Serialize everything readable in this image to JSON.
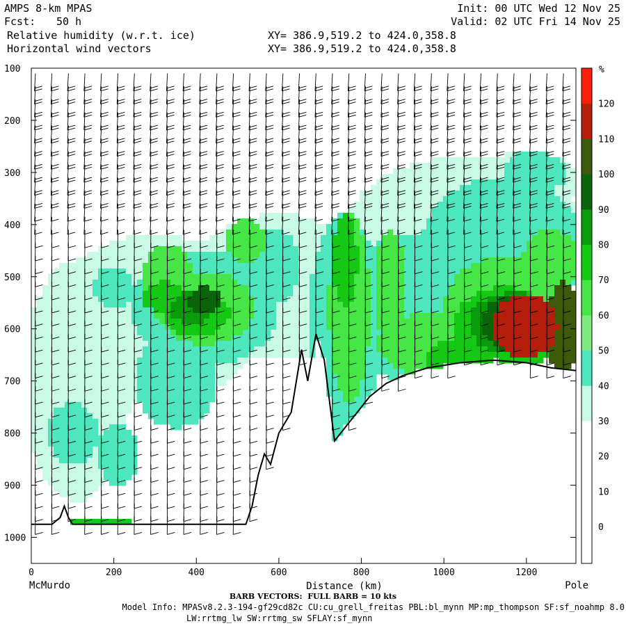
{
  "header": {
    "model": "AMPS 8-km MPAS",
    "fcst_label": "Fcst:",
    "fcst_value": "50 h",
    "field": "Relative humidity (w.r.t. ice)",
    "vector_field": "Horizontal wind vectors",
    "xy_line1": "XY= 386.9,519.2 to 424.0,358.8",
    "xy_line2": "XY= 386.9,519.2 to 424.0,358.8",
    "init": "Init: 00 UTC Wed 12 Nov 25",
    "valid": "Valid: 02 UTC Fri 14 Nov 25"
  },
  "footer": {
    "barb_note": "BARB VECTORS:  FULL BARB = 10 kts",
    "model_info_1": "Model Info: MPASv8.2.3-194-gf29cd82c CU:cu_grell_freitas PBL:bl_mynn MP:mp_thompson SF:sf_noahmp 8.0",
    "model_info_2": "LW:rrtmg_lw SW:rrtmg_sw SFLAY:sf_mynn"
  },
  "chart_data": {
    "type": "heatmap",
    "title": "Relative humidity (w.r.t. ice)",
    "xlabel": "Distance (km)",
    "xlim": [
      0,
      1320
    ],
    "ylim": [
      1050,
      100
    ],
    "x_ticks": [
      0,
      200,
      400,
      600,
      800,
      1000,
      1200
    ],
    "y_ticks": [
      100,
      200,
      300,
      400,
      500,
      600,
      700,
      800,
      900,
      1000
    ],
    "x_end_labels": [
      "McMurdo",
      "Pole"
    ],
    "colorbar": {
      "unit": "%",
      "levels": [
        0,
        10,
        20,
        30,
        40,
        50,
        60,
        70,
        80,
        90,
        100,
        110,
        120
      ],
      "colors": [
        "#ffffff",
        "#ffffff",
        "#ffffff",
        "#c8fae6",
        "#4ee6be",
        "#7deb7d",
        "#46e646",
        "#14c814",
        "#0a9b0a",
        "#0a640a",
        "#3c5a0a",
        "#b41e0a",
        "#ff1e0a"
      ]
    },
    "rh_blobs": [
      {
        "x": 300,
        "p": 580,
        "rx": 260,
        "ry": 160,
        "rh": 35
      },
      {
        "x": 110,
        "p": 700,
        "rx": 130,
        "ry": 230,
        "rh": 35
      },
      {
        "x": 600,
        "p": 520,
        "rx": 220,
        "ry": 140,
        "rh": 35
      },
      {
        "x": 1050,
        "p": 430,
        "rx": 300,
        "ry": 160,
        "rh": 35
      },
      {
        "x": 1200,
        "p": 320,
        "rx": 130,
        "ry": 60,
        "rh": 35
      },
      {
        "x": 420,
        "p": 560,
        "rx": 180,
        "ry": 110,
        "rh": 45
      },
      {
        "x": 350,
        "p": 700,
        "rx": 100,
        "ry": 90,
        "rh": 45
      },
      {
        "x": 100,
        "p": 800,
        "rx": 60,
        "ry": 60,
        "rh": 45
      },
      {
        "x": 210,
        "p": 840,
        "rx": 50,
        "ry": 60,
        "rh": 45
      },
      {
        "x": 200,
        "p": 520,
        "rx": 50,
        "ry": 40,
        "rh": 45
      },
      {
        "x": 590,
        "p": 480,
        "rx": 60,
        "ry": 70,
        "rh": 45
      },
      {
        "x": 760,
        "p": 600,
        "rx": 90,
        "ry": 220,
        "rh": 45
      },
      {
        "x": 930,
        "p": 560,
        "rx": 200,
        "ry": 140,
        "rh": 45
      },
      {
        "x": 1140,
        "p": 450,
        "rx": 200,
        "ry": 140,
        "rh": 45
      },
      {
        "x": 1220,
        "p": 300,
        "rx": 80,
        "ry": 40,
        "rh": 45
      },
      {
        "x": 420,
        "p": 560,
        "rx": 120,
        "ry": 70,
        "rh": 60
      },
      {
        "x": 330,
        "p": 500,
        "rx": 60,
        "ry": 60,
        "rh": 60
      },
      {
        "x": 520,
        "p": 430,
        "rx": 50,
        "ry": 40,
        "rh": 60
      },
      {
        "x": 770,
        "p": 560,
        "rx": 50,
        "ry": 180,
        "rh": 60
      },
      {
        "x": 870,
        "p": 520,
        "rx": 40,
        "ry": 110,
        "rh": 60
      },
      {
        "x": 960,
        "p": 630,
        "rx": 120,
        "ry": 60,
        "rh": 60
      },
      {
        "x": 1150,
        "p": 560,
        "rx": 150,
        "ry": 100,
        "rh": 60
      },
      {
        "x": 1260,
        "p": 470,
        "rx": 70,
        "ry": 60,
        "rh": 60
      },
      {
        "x": 400,
        "p": 570,
        "rx": 80,
        "ry": 45,
        "rh": 70
      },
      {
        "x": 320,
        "p": 540,
        "rx": 50,
        "ry": 30,
        "rh": 70
      },
      {
        "x": 760,
        "p": 470,
        "rx": 30,
        "ry": 90,
        "rh": 70
      },
      {
        "x": 1150,
        "p": 600,
        "rx": 130,
        "ry": 80,
        "rh": 70
      },
      {
        "x": 1020,
        "p": 660,
        "rx": 60,
        "ry": 40,
        "rh": 70
      },
      {
        "x": 390,
        "p": 560,
        "rx": 55,
        "ry": 30,
        "rh": 80
      },
      {
        "x": 1170,
        "p": 590,
        "rx": 110,
        "ry": 60,
        "rh": 80
      },
      {
        "x": 420,
        "p": 545,
        "rx": 40,
        "ry": 25,
        "rh": 90
      },
      {
        "x": 1180,
        "p": 590,
        "rx": 90,
        "ry": 55,
        "rh": 90
      },
      {
        "x": 1195,
        "p": 595,
        "rx": 80,
        "ry": 60,
        "rh": 110
      },
      {
        "x": 1290,
        "p": 600,
        "rx": 40,
        "ry": 90,
        "rh": 100
      },
      {
        "x": 160,
        "p": 975,
        "rx": 110,
        "ry": 8,
        "rh": 70
      }
    ],
    "terrain": [
      {
        "x": 0,
        "p": 975
      },
      {
        "x": 50,
        "p": 975
      },
      {
        "x": 70,
        "p": 962
      },
      {
        "x": 80,
        "p": 940
      },
      {
        "x": 90,
        "p": 962
      },
      {
        "x": 100,
        "p": 975
      },
      {
        "x": 520,
        "p": 975
      },
      {
        "x": 535,
        "p": 940
      },
      {
        "x": 550,
        "p": 880
      },
      {
        "x": 565,
        "p": 840
      },
      {
        "x": 580,
        "p": 860
      },
      {
        "x": 600,
        "p": 800
      },
      {
        "x": 630,
        "p": 760
      },
      {
        "x": 655,
        "p": 640
      },
      {
        "x": 670,
        "p": 700
      },
      {
        "x": 690,
        "p": 610
      },
      {
        "x": 710,
        "p": 660
      },
      {
        "x": 735,
        "p": 815
      },
      {
        "x": 760,
        "p": 790
      },
      {
        "x": 790,
        "p": 760
      },
      {
        "x": 820,
        "p": 730
      },
      {
        "x": 860,
        "p": 705
      },
      {
        "x": 900,
        "p": 690
      },
      {
        "x": 960,
        "p": 675
      },
      {
        "x": 1040,
        "p": 665
      },
      {
        "x": 1120,
        "p": 660
      },
      {
        "x": 1200,
        "p": 665
      },
      {
        "x": 1260,
        "p": 675
      },
      {
        "x": 1320,
        "p": 680
      }
    ],
    "wind_field": {
      "column_spacing_km": 40,
      "level_spacing_hpa": 25,
      "barb_length": 26
    }
  }
}
